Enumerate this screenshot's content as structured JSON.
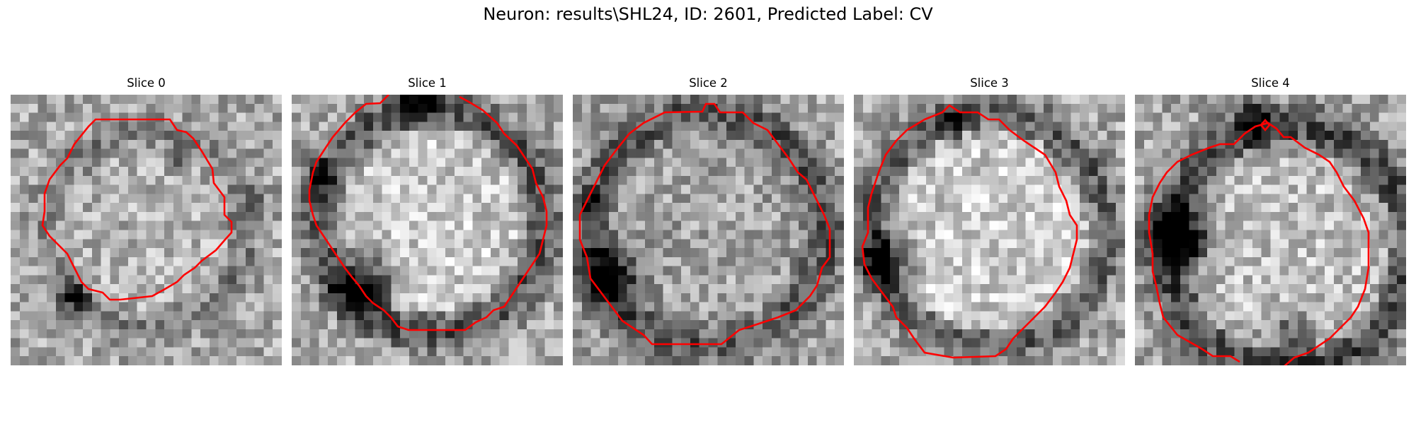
{
  "figure": {
    "title": "Neuron: results\\SHL24, ID: 2601, Predicted Label: CV"
  },
  "panels": [
    {
      "title": "Slice 0",
      "dark_blobs": [
        "lower-left",
        "upper-right edge"
      ],
      "contour_color": "#ff0000"
    },
    {
      "title": "Slice 1",
      "dark_blobs": [
        "lower-left",
        "top",
        "left edge"
      ],
      "contour_color": "#ff0000"
    },
    {
      "title": "Slice 2",
      "dark_blobs": [
        "lower-left",
        "left edge"
      ],
      "contour_color": "#ff0000"
    },
    {
      "title": "Slice 3",
      "dark_blobs": [
        "left",
        "top ring"
      ],
      "contour_color": "#ff0000"
    },
    {
      "title": "Slice 4",
      "dark_blobs": [
        "left",
        "top ring",
        "bottom ring"
      ],
      "contour_color": "#ff0000"
    }
  ],
  "colormap": "gray",
  "contour_color": "#ff0000"
}
